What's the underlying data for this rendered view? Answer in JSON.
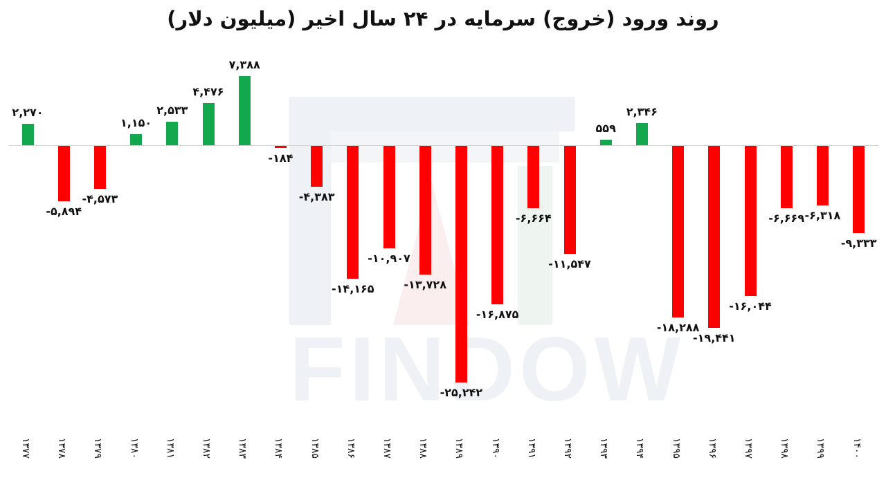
{
  "title": "روند ورود (خروج) سرمایه در ۲۴ سال اخیر (میلیون دلار)",
  "watermark": "FINDOW",
  "colors": {
    "positive": "#13a84e",
    "negative": "#ff0000",
    "zero_line": "#d0d0d0",
    "watermark": "#eef1f6"
  },
  "chart_data": {
    "type": "bar",
    "title": "روند ورود (خروج) سرمایه در ۲۴ سال اخیر (میلیون دلار)",
    "xlabel": "",
    "ylabel": "میلیون دلار",
    "grid": false,
    "legend": "none",
    "categories": [
      "۱۳۷۷",
      "۱۳۷۸",
      "۱۳۷۹",
      "۱۳۸۰",
      "۱۳۸۱",
      "۱۳۸۲",
      "۱۳۸۳",
      "۱۳۸۴",
      "۱۳۸۵",
      "۱۳۸۶",
      "۱۳۸۷",
      "۱۳۸۸",
      "۱۳۸۹",
      "۱۳۹۰",
      "۱۳۹۱",
      "۱۳۹۲",
      "۱۳۹۳",
      "۱۳۹۴",
      "۱۳۹۵",
      "۱۳۹۶",
      "۱۳۹۷",
      "۱۳۹۸",
      "۱۳۹۹",
      "۱۴۰۰"
    ],
    "values": [
      2270,
      -5894,
      -4573,
      1150,
      2533,
      4476,
      7388,
      -184,
      -4383,
      -14165,
      -10907,
      -13728,
      -25242,
      -16875,
      -6664,
      -11547,
      559,
      2346,
      -18288,
      -19441,
      -16044,
      -6669,
      -6318,
      -9333
    ],
    "value_labels": [
      "۲,۲۷۰",
      "-۵,۸۹۴",
      "-۴,۵۷۳",
      "۱,۱۵۰",
      "۲,۵۳۳",
      "۴,۴۷۶",
      "۷,۳۸۸",
      "-۱۸۴",
      "-۴,۳۸۳",
      "-۱۴,۱۶۵",
      "-۱۰,۹۰۷",
      "-۱۳,۷۲۸",
      "-۲۵,۲۴۲",
      "-۱۶,۸۷۵",
      "-۶,۶۶۴",
      "-۱۱,۵۴۷",
      "۵۵۹",
      "۲,۳۴۶",
      "-۱۸,۲۸۸",
      "-۱۹,۴۴۱",
      "-۱۶,۰۴۴",
      "-۶,۶۶۹",
      "-۶,۳۱۸",
      "-۹,۳۳۳"
    ],
    "ylim": [
      -26000,
      8000
    ]
  }
}
